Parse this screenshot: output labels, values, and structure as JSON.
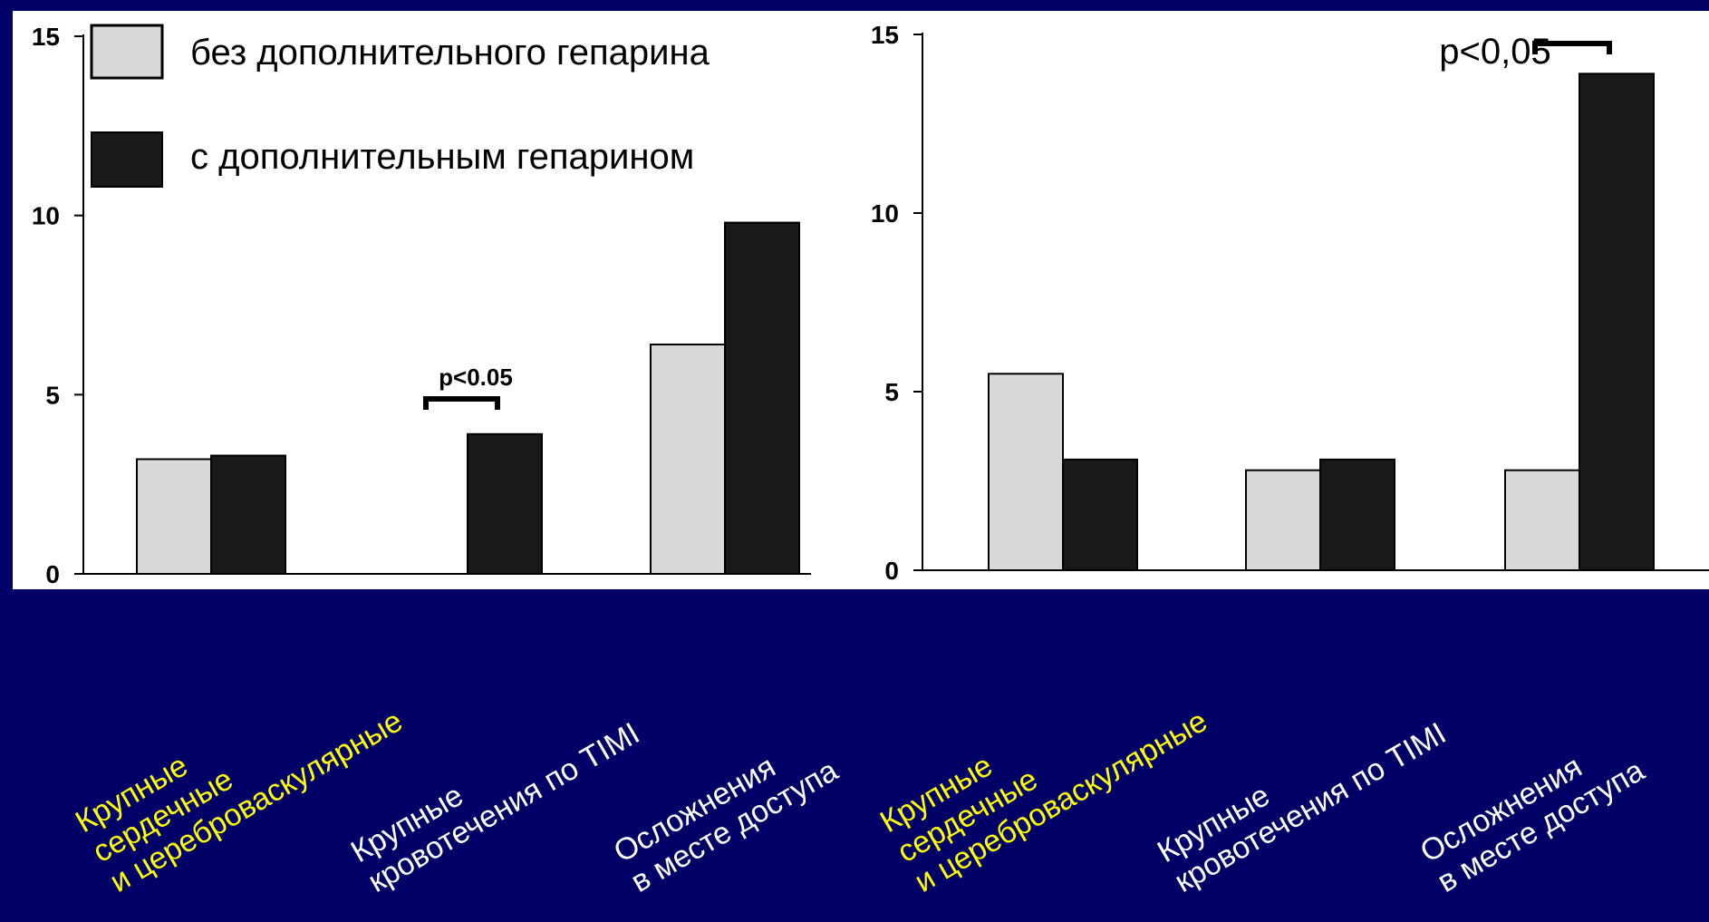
{
  "colors": {
    "background": "#000066",
    "panel": "#ffffff",
    "without_heparin": "#d8d8d8",
    "with_heparin": "#1a1a1a",
    "label_yellow": "#ffff00",
    "label_white": "#ffffff"
  },
  "legend": {
    "without_label": "без дополнительного гепарина",
    "with_label": "с дополнительным гепарином"
  },
  "chart_data": [
    {
      "type": "bar",
      "categories": [
        "Крупные\nсердечные\nи цереброваскулярные",
        "Крупные\nкровотечения по TIMI",
        "Осложнения\nв месте доступа"
      ],
      "category_colors": [
        "label_yellow",
        "label_white",
        "label_white"
      ],
      "series": [
        {
          "name": "без дополнительного гепарина",
          "values": [
            3.2,
            0,
            6.4
          ]
        },
        {
          "name": "с дополнительным гепарином",
          "values": [
            3.3,
            3.9,
            9.8
          ]
        }
      ],
      "ylim": [
        0,
        15
      ],
      "yticks": [
        "0",
        "5",
        "10",
        "15"
      ],
      "annotations": [
        {
          "text": "p<0.05",
          "category": 1
        }
      ],
      "legend_position": "top-left"
    },
    {
      "type": "bar",
      "categories": [
        "Крупные\nсердечные\nи цереброваскулярные",
        "Крупные\nкровотечения по TIMI",
        "Осложнения\nв месте доступа"
      ],
      "category_colors": [
        "label_yellow",
        "label_white",
        "label_white"
      ],
      "series": [
        {
          "name": "без дополнительного гепарина",
          "values": [
            5.5,
            2.8,
            2.8
          ]
        },
        {
          "name": "с дополнительным гепарином",
          "values": [
            3.1,
            3.1,
            13.9
          ]
        }
      ],
      "ylim": [
        0,
        15
      ],
      "yticks": [
        "0",
        "5",
        "10",
        "15"
      ],
      "annotations": [
        {
          "text": "p<0,05",
          "category": 2
        }
      ]
    }
  ]
}
